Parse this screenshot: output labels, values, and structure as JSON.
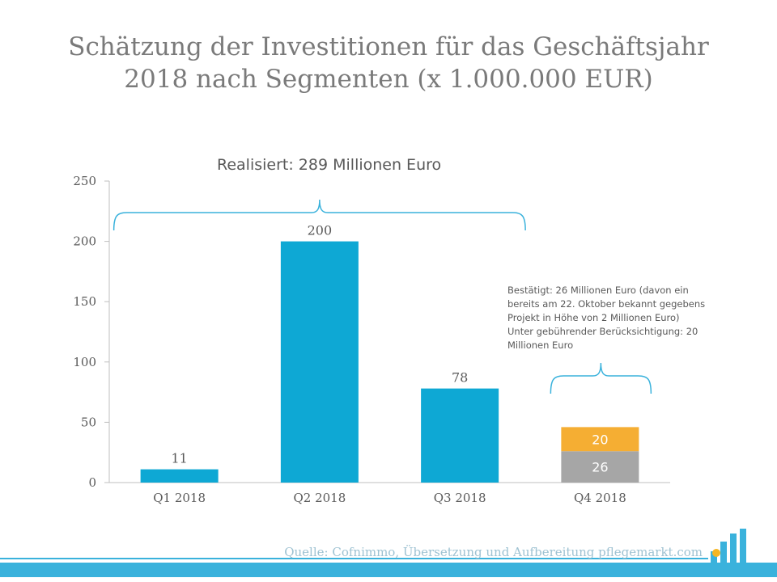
{
  "chart_data": {
    "type": "bar",
    "title": "Schätzung der Investitionen für das Geschäftsjahr 2018 nach Segmenten (x 1.000.000 EUR)",
    "title_lines": [
      "Schätzung der Investitionen für das Geschäftsjahr",
      "2018 nach Segmenten (x 1.000.000 EUR)"
    ],
    "categories": [
      "Q1 2018",
      "Q2 2018",
      "Q3 2018",
      "Q4 2018"
    ],
    "ylim": [
      0,
      250
    ],
    "yticks": [
      0,
      50,
      100,
      150,
      200,
      250
    ],
    "grid": false,
    "bars": [
      {
        "category": "Q1 2018",
        "value": 11,
        "label": "11",
        "color": "#0ea8d4"
      },
      {
        "category": "Q2 2018",
        "value": 200,
        "label": "200",
        "color": "#0ea8d4"
      },
      {
        "category": "Q3 2018",
        "value": 78,
        "label": "78",
        "color": "#0ea8d4"
      }
    ],
    "stacked_bar": {
      "category": "Q4 2018",
      "segments": [
        {
          "value": 26,
          "label": "26",
          "color": "#a6a6a6"
        },
        {
          "value": 20,
          "label": "20",
          "color": "#f5ae33"
        }
      ]
    },
    "annotations": {
      "realized": "Realisiert: 289 Millionen Euro",
      "q4_lines": [
        "Bestätigt: 26 Millionen Euro (davon ein",
        "bereits am 22. Oktober bekannt gegebens",
        "Projekt in Höhe von 2 Millionen Euro)",
        "Unter gebührender Berücksichtigung: 20",
        "Millionen Euro"
      ]
    }
  },
  "colors": {
    "accent": "#3ab2dc",
    "bar_blue": "#0ea8d4",
    "bar_gray": "#a6a6a6",
    "bar_orange": "#f5ae33",
    "logo_dot": "#f5b623"
  },
  "footer": {
    "source": "Quelle: Cofnimmo, Übersetzung und Aufbereitung pflegemarkt.com"
  }
}
